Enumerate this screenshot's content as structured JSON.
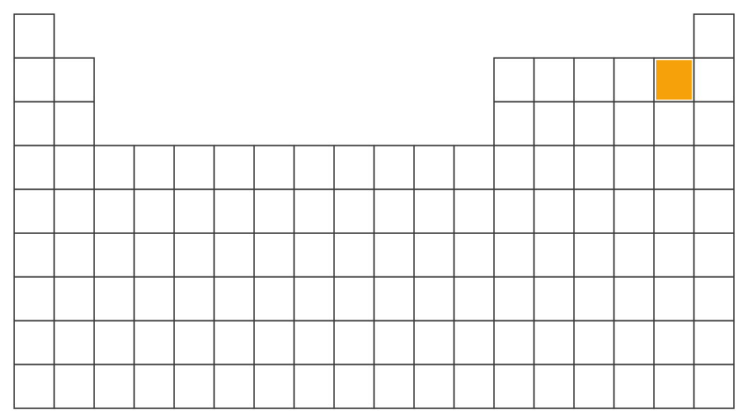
{
  "diagram": {
    "type": "periodic-table-blank",
    "groups": 18,
    "periods": 9,
    "colors": {
      "cell_fill": "#ffffff",
      "cell_border": "#3a3a3a",
      "highlight": "#f7a10a"
    },
    "rows": [
      {
        "period": 1,
        "groups": [
          1,
          18
        ]
      },
      {
        "period": 2,
        "groups": [
          1,
          2,
          13,
          14,
          15,
          16,
          17,
          18
        ]
      },
      {
        "period": 3,
        "groups": [
          1,
          2,
          13,
          14,
          15,
          16,
          17,
          18
        ]
      },
      {
        "period": 4,
        "groups": [
          1,
          2,
          3,
          4,
          5,
          6,
          7,
          8,
          9,
          10,
          11,
          12,
          13,
          14,
          15,
          16,
          17,
          18
        ]
      },
      {
        "period": 5,
        "groups": [
          1,
          2,
          3,
          4,
          5,
          6,
          7,
          8,
          9,
          10,
          11,
          12,
          13,
          14,
          15,
          16,
          17,
          18
        ]
      },
      {
        "period": 6,
        "groups": [
          1,
          2,
          3,
          4,
          5,
          6,
          7,
          8,
          9,
          10,
          11,
          12,
          13,
          14,
          15,
          16,
          17,
          18
        ]
      },
      {
        "period": 7,
        "groups": [
          1,
          2,
          3,
          4,
          5,
          6,
          7,
          8,
          9,
          10,
          11,
          12,
          13,
          14,
          15,
          16,
          17,
          18
        ]
      },
      {
        "period": 8,
        "groups": [
          1,
          2,
          3,
          4,
          5,
          6,
          7,
          8,
          9,
          10,
          11,
          12,
          13,
          14,
          15,
          16,
          17,
          18
        ]
      },
      {
        "period": 9,
        "groups": [
          1,
          2,
          3,
          4,
          5,
          6,
          7,
          8,
          9,
          10,
          11,
          12,
          13,
          14,
          15,
          16,
          17,
          18
        ]
      }
    ],
    "highlighted_cell": {
      "period": 2,
      "group": 17
    }
  }
}
